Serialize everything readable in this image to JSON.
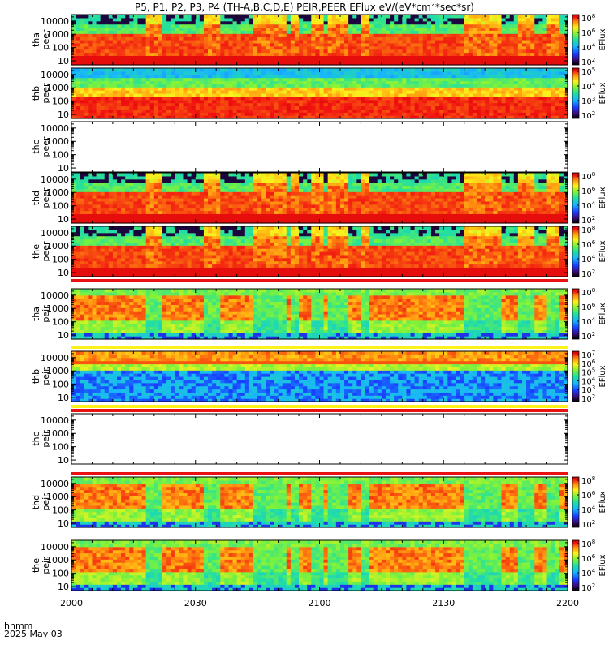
{
  "title": {
    "text_prefix": "P5, P1, P2, P3, P4 (TH-A,B,C,D,E) PEIR,PEER EFlux eV/(eV*cm",
    "superscript": "2",
    "text_suffix": "*sec*sr)"
  },
  "footer": {
    "time_label": "hhmm",
    "date_label": "2025 May 03"
  },
  "colorbar_label": "EFlux",
  "chart_data": {
    "type": "heatmap",
    "x": {
      "ticks": [
        "2000",
        "2030",
        "2100",
        "2130",
        "2200"
      ],
      "range_hhmm": [
        "2000",
        "2200"
      ]
    },
    "y_ticks": [
      "10",
      "100",
      "1000",
      "10000"
    ],
    "y_scale": "log",
    "panels": [
      {
        "id": "tha-peer",
        "ylabel": [
          "tha",
          "peer"
        ],
        "has_data": true,
        "cbar_ticks": [
          "10^8",
          "10^6",
          "10^4",
          "10^2"
        ],
        "red_bar": false,
        "pattern": "electron"
      },
      {
        "id": "thb-peer",
        "ylabel": [
          "thb",
          "peer"
        ],
        "has_data": true,
        "cbar_ticks": [
          "10^5",
          "10^4",
          "10^3",
          "10^2"
        ],
        "red_bar": false,
        "pattern": "thb-electron"
      },
      {
        "id": "thc-peer",
        "ylabel": [
          "thc",
          "peer"
        ],
        "has_data": false,
        "cbar_ticks": [],
        "red_bar": false,
        "pattern": "empty"
      },
      {
        "id": "thd-peer",
        "ylabel": [
          "thd",
          "peer"
        ],
        "has_data": true,
        "cbar_ticks": [
          "10^8",
          "10^6",
          "10^4",
          "10^2"
        ],
        "red_bar": false,
        "pattern": "electron"
      },
      {
        "id": "the-peer",
        "ylabel": [
          "the",
          "peer"
        ],
        "has_data": true,
        "cbar_ticks": [
          "10^8",
          "10^6",
          "10^4",
          "10^2"
        ],
        "red_bar": true,
        "pattern": "electron"
      },
      {
        "id": "tha-peir",
        "ylabel": [
          "tha",
          "peir"
        ],
        "has_data": true,
        "cbar_ticks": [
          "10^8",
          "10^6",
          "10^4",
          "10^2"
        ],
        "red_bar": false,
        "pattern": "ion"
      },
      {
        "id": "thb-peir",
        "ylabel": [
          "thb",
          "peir"
        ],
        "has_data": true,
        "cbar_ticks": [
          "10^7",
          "10^6",
          "10^5",
          "10^4",
          "10^3",
          "10^2"
        ],
        "red_bar": false,
        "yellow_bars": true,
        "pattern": "thb-ion"
      },
      {
        "id": "thc-peir",
        "ylabel": [
          "thc",
          "peir"
        ],
        "has_data": false,
        "cbar_ticks": [],
        "red_bar": true,
        "pattern": "empty"
      },
      {
        "id": "thd-peir",
        "ylabel": [
          "thd",
          "peir"
        ],
        "has_data": true,
        "cbar_ticks": [
          "10^8",
          "10^6",
          "10^4",
          "10^2"
        ],
        "red_bar": true,
        "pattern": "ion"
      },
      {
        "id": "the-peir",
        "ylabel": [
          "the",
          "peir"
        ],
        "has_data": true,
        "cbar_ticks": [
          "10^8",
          "10^6",
          "10^4",
          "10^2"
        ],
        "red_bar": false,
        "pattern": "ion"
      }
    ]
  }
}
